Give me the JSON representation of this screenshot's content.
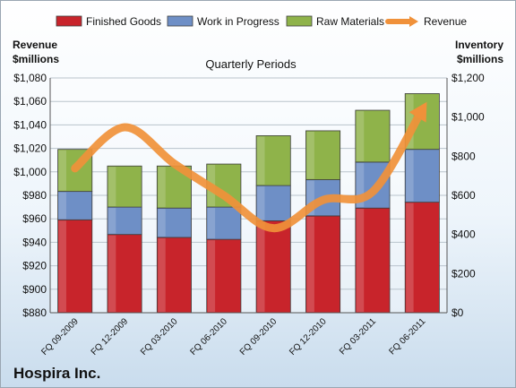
{
  "company": "Hospira Inc.",
  "chart_data": {
    "type": "bar",
    "stacked": true,
    "title": "Quarterly Periods",
    "left_axis": {
      "label_line1": "Revenue",
      "label_line2": "$millions",
      "min": 880,
      "max": 1080,
      "step": 20
    },
    "right_axis": {
      "label_line1": "Inventory",
      "label_line2": "$millions",
      "min": 0,
      "max": 1200,
      "step": 200
    },
    "categories": [
      "FQ 09-2009",
      "FQ 12-2009",
      "FQ 03-2010",
      "FQ 06-2010",
      "FQ 09-2010",
      "FQ 12-2010",
      "FQ 03-2011",
      "FQ 06-2011"
    ],
    "series": [
      {
        "name": "Finished Goods",
        "axis": "right",
        "color": "#c8242b",
        "values": [
          475,
          400,
          385,
          375,
          470,
          495,
          535,
          565
        ]
      },
      {
        "name": "Work in Progress",
        "axis": "right",
        "color": "#6e8fc6",
        "values": [
          145,
          140,
          150,
          165,
          180,
          185,
          235,
          270
        ]
      },
      {
        "name": "Raw Materials",
        "axis": "right",
        "color": "#8fb34a",
        "values": [
          215,
          210,
          215,
          220,
          255,
          250,
          265,
          285
        ]
      },
      {
        "name": "Revenue",
        "axis": "left",
        "type": "line",
        "color": "#f0913a",
        "values": [
          1003,
          1038,
          1007,
          980,
          952,
          976,
          983,
          1053
        ]
      }
    ],
    "legend_position": "top",
    "grid": true
  }
}
